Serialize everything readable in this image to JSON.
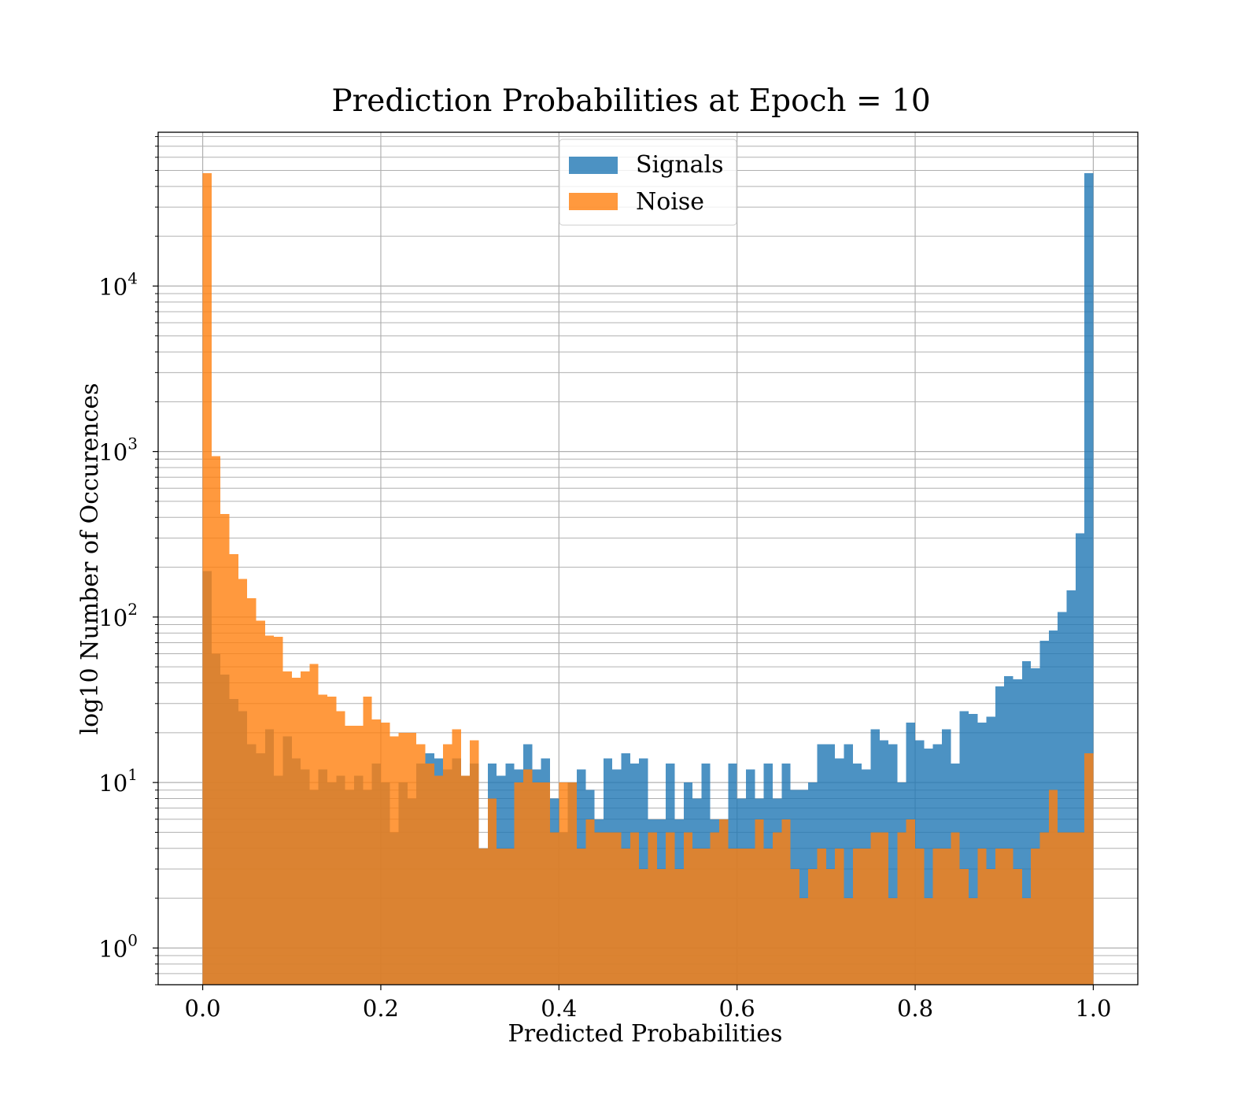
{
  "chart_data": {
    "type": "bar",
    "title": "Prediction Probabilities at Epoch = 10",
    "xlabel": "Predicted Probabilities",
    "ylabel": "log10 Number of Occurences",
    "yscale": "log",
    "xlim": [
      -0.05,
      1.05
    ],
    "ylim": [
      0.6,
      85000
    ],
    "grid": true,
    "legend_position": "top-center",
    "bin_width": 0.01,
    "x_bin_starts": [
      0.0,
      0.01,
      0.02,
      0.03,
      0.04,
      0.05,
      0.06,
      0.07,
      0.08,
      0.09,
      0.1,
      0.11,
      0.12,
      0.13,
      0.14,
      0.15,
      0.16,
      0.17,
      0.18,
      0.19,
      0.2,
      0.21,
      0.22,
      0.23,
      0.24,
      0.25,
      0.26,
      0.27,
      0.28,
      0.29,
      0.3,
      0.31,
      0.32,
      0.33,
      0.34,
      0.35,
      0.36,
      0.37,
      0.38,
      0.39,
      0.4,
      0.41,
      0.42,
      0.43,
      0.44,
      0.45,
      0.46,
      0.47,
      0.48,
      0.49,
      0.5,
      0.51,
      0.52,
      0.53,
      0.54,
      0.55,
      0.56,
      0.57,
      0.58,
      0.59,
      0.6,
      0.61,
      0.62,
      0.63,
      0.64,
      0.65,
      0.66,
      0.67,
      0.68,
      0.69,
      0.7,
      0.71,
      0.72,
      0.73,
      0.74,
      0.75,
      0.76,
      0.77,
      0.78,
      0.79,
      0.8,
      0.81,
      0.82,
      0.83,
      0.84,
      0.85,
      0.86,
      0.87,
      0.88,
      0.89,
      0.9,
      0.91,
      0.92,
      0.93,
      0.94,
      0.95,
      0.96,
      0.97,
      0.98,
      0.99
    ],
    "series": [
      {
        "name": "Signals",
        "color": "#1f77b4",
        "opacity": 0.8,
        "values": [
          190,
          60,
          45,
          32,
          27,
          17,
          15,
          21,
          11,
          19,
          14,
          12,
          9,
          12,
          10,
          11,
          9,
          11,
          9,
          13,
          10,
          5,
          10,
          8,
          13,
          15,
          14,
          12,
          14,
          11,
          13,
          4,
          13,
          11,
          13,
          12,
          17,
          12,
          14,
          8,
          5,
          10,
          12,
          9,
          6,
          14,
          12,
          15,
          13,
          14,
          6,
          6,
          13,
          6,
          10,
          8,
          13,
          6,
          6,
          13,
          8,
          12,
          8,
          13,
          8,
          13,
          9,
          9,
          10,
          17,
          17,
          14,
          17,
          13,
          12,
          21,
          18,
          17,
          10,
          23,
          18,
          16,
          17,
          21,
          13,
          27,
          26,
          23,
          25,
          38,
          44,
          42,
          54,
          49,
          72,
          83,
          107,
          145,
          320,
          48000
        ]
      },
      {
        "name": "Noise",
        "color": "#ff7f0e",
        "opacity": 0.8,
        "values": [
          48000,
          940,
          420,
          240,
          170,
          130,
          95,
          77,
          76,
          47,
          43,
          47,
          52,
          34,
          33,
          27,
          22,
          22,
          33,
          24,
          23,
          19,
          20,
          20,
          17,
          13,
          11,
          17,
          21,
          11,
          18,
          4,
          8,
          4,
          4,
          10,
          12,
          10,
          10,
          5,
          10,
          10,
          4,
          6,
          5,
          5,
          5,
          4,
          5,
          3,
          5,
          3,
          5,
          3,
          5,
          4,
          4,
          5,
          6,
          4,
          4,
          4,
          6,
          4,
          5,
          6,
          3,
          2,
          3,
          4,
          3,
          4,
          2,
          4,
          4,
          5,
          5,
          2,
          5,
          6,
          4,
          2,
          4,
          4,
          5,
          3,
          2,
          4,
          3,
          4,
          4,
          3,
          2,
          4,
          5,
          9,
          5,
          5,
          5,
          15
        ]
      }
    ],
    "xticks": [
      "0.0",
      "0.2",
      "0.4",
      "0.6",
      "0.8",
      "1.0"
    ],
    "yticks": [
      {
        "base": "10",
        "exp": "0"
      },
      {
        "base": "10",
        "exp": "1"
      },
      {
        "base": "10",
        "exp": "2"
      },
      {
        "base": "10",
        "exp": "3"
      },
      {
        "base": "10",
        "exp": "4"
      }
    ]
  }
}
